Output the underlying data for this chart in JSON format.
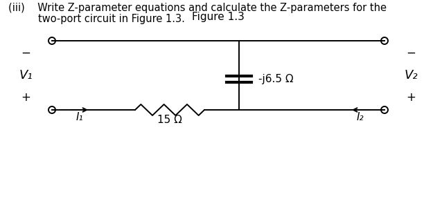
{
  "title_line1": "(iii)    Write Z-parameter equations and calculate the Z-parameters for the",
  "title_line2": "two-port circuit in Figure 1.3.",
  "figure_label": "Figure 1.3",
  "resistor_label": "15 Ω",
  "capacitor_label": "-j6.5 Ω",
  "I1_label": "I₁",
  "I2_label": "I₂",
  "V1_label": "V₁",
  "V2_label": "V₂",
  "plus": "+",
  "minus": "−",
  "line_color": "#000000",
  "bg_color": "#ffffff",
  "font_size_text": 10.5,
  "font_size_labels": 11,
  "font_size_large": 13
}
